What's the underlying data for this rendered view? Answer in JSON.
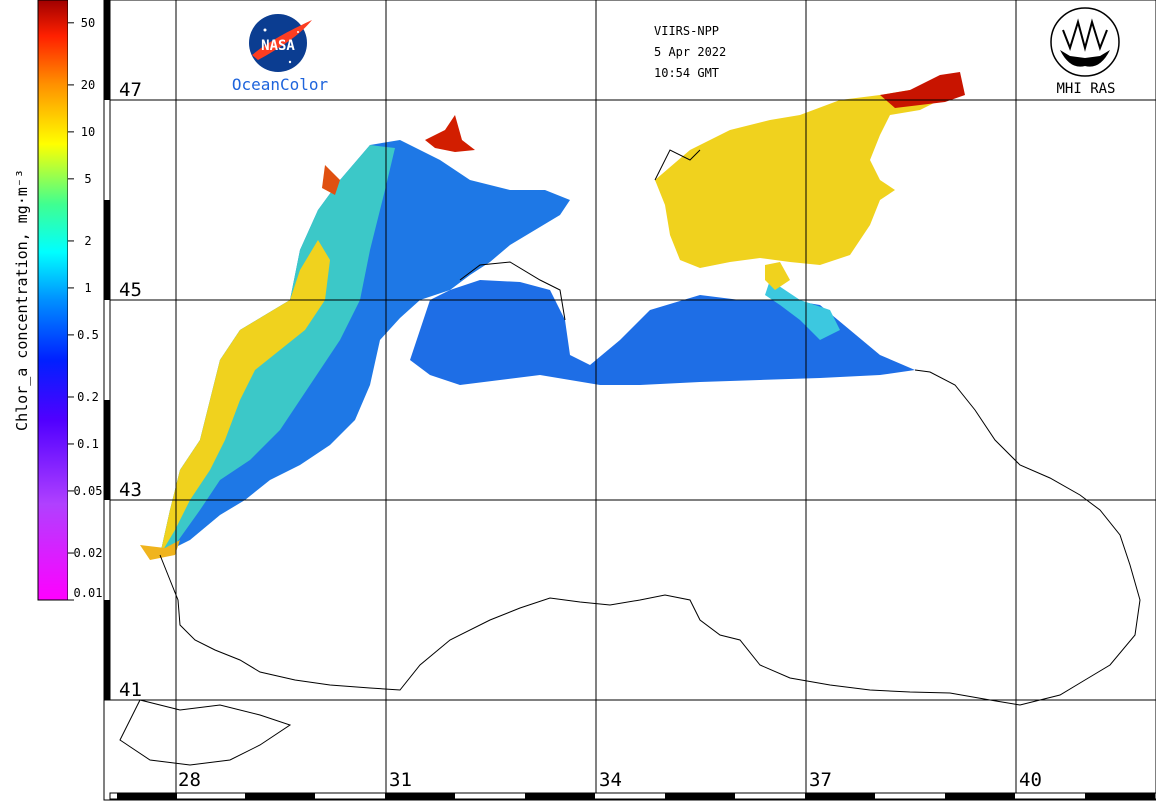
{
  "colorbar": {
    "title": "Chlor_a concentration, mg·m⁻³",
    "ticks": [
      "50",
      "20",
      "10",
      "5",
      "2",
      "1",
      "0.5",
      "0.2",
      "0.1",
      "0.05",
      "0.02",
      "0.01"
    ],
    "scale": "log",
    "colors": [
      "#ff00ff",
      "#8000ff",
      "#0000ff",
      "#0080ff",
      "#00ffff",
      "#00ff80",
      "#ffff00",
      "#ff8000",
      "#ff0000",
      "#800000"
    ]
  },
  "header": {
    "sensor": "VIIRS-NPP",
    "date": "5 Apr 2022",
    "time": "10:54 GMT"
  },
  "logos": {
    "nasa_text": "NASA",
    "oceancolor": "OceanColor",
    "mhi": "MHI RAS"
  },
  "grid": {
    "latitudes": [
      "47",
      "45",
      "43",
      "41"
    ],
    "longitudes": [
      "28",
      "31",
      "34",
      "37",
      "40"
    ]
  },
  "map": {
    "region": "Black Sea",
    "chlor_colors": {
      "high": "#d21e00",
      "medium": "#f0d21e",
      "low": "#1e6ee6",
      "moderate": "#3cc8c8"
    }
  }
}
